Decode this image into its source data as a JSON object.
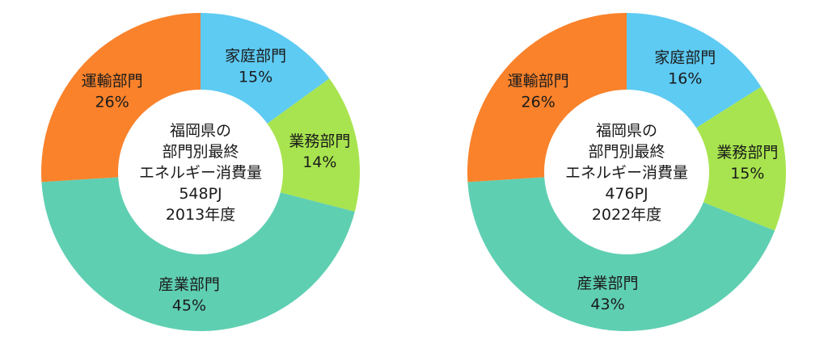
{
  "chart_data": [
    {
      "type": "pie",
      "donut": true,
      "center_text": [
        "福岡県の",
        "部門別最終",
        "エネルギー消費量",
        "548PJ",
        "2013年度"
      ],
      "slices": [
        {
          "name": "家庭部門",
          "value": 15,
          "value_label": "15%",
          "color": "#5ecbf3"
        },
        {
          "name": "業務部門",
          "value": 14,
          "value_label": "14%",
          "color": "#a8e44f"
        },
        {
          "name": "産業部門",
          "value": 45,
          "value_label": "45%",
          "color": "#5fcfb2"
        },
        {
          "name": "運輸部門",
          "value": 26,
          "value_label": "26%",
          "color": "#f9822b"
        }
      ]
    },
    {
      "type": "pie",
      "donut": true,
      "center_text": [
        "福岡県の",
        "部門別最終",
        "エネルギー消費量",
        "476PJ",
        "2022年度"
      ],
      "slices": [
        {
          "name": "家庭部門",
          "value": 16,
          "value_label": "16%",
          "color": "#5ecbf3"
        },
        {
          "name": "業務部門",
          "value": 15,
          "value_label": "15%",
          "color": "#a8e44f"
        },
        {
          "name": "産業部門",
          "value": 43,
          "value_label": "43%",
          "color": "#5fcfb2"
        },
        {
          "name": "運輸部門",
          "value": 26,
          "value_label": "26%",
          "color": "#f9822b"
        }
      ]
    }
  ]
}
